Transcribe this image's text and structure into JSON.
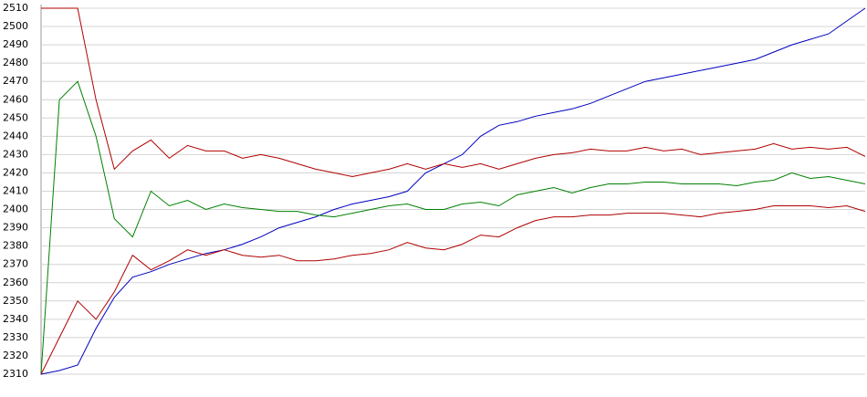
{
  "chart_data": {
    "type": "line",
    "ylim": [
      2310,
      2510
    ],
    "yticks": [
      2310,
      2320,
      2330,
      2340,
      2350,
      2360,
      2370,
      2380,
      2390,
      2400,
      2410,
      2420,
      2430,
      2440,
      2450,
      2460,
      2470,
      2480,
      2490,
      2500,
      2510
    ],
    "grid": true,
    "series": [
      {
        "color": "#0000c0",
        "values": [
          2310,
          2312,
          2315,
          2335,
          2352,
          2363,
          2366,
          2370,
          2373,
          2376,
          2378,
          2381,
          2385,
          2390,
          2393,
          2396,
          2400,
          2403,
          2405,
          2407,
          2410,
          2420,
          2425,
          2430,
          2440,
          2446,
          2448,
          2451,
          2453,
          2455,
          2458,
          2462,
          2466,
          2470,
          2472,
          2474,
          2476,
          2478,
          2480,
          2482,
          2486,
          2490,
          2493,
          2496,
          2503,
          2510
        ]
      },
      {
        "color": "#b00000",
        "values": [
          2510,
          2510,
          2510,
          2460,
          2422,
          2432,
          2438,
          2428,
          2435,
          2432,
          2432,
          2428,
          2430,
          2428,
          2425,
          2422,
          2420,
          2418,
          2420,
          2422,
          2425,
          2422,
          2425,
          2423,
          2425,
          2422,
          2425,
          2428,
          2430,
          2431,
          2433,
          2432,
          2432,
          2434,
          2432,
          2433,
          2430,
          2431,
          2432,
          2433,
          2436,
          2433,
          2434,
          2433,
          2434,
          2429
        ]
      },
      {
        "color": "#008000",
        "values": [
          2310,
          2460,
          2470,
          2440,
          2395,
          2385,
          2410,
          2402,
          2405,
          2400,
          2403,
          2401,
          2400,
          2399,
          2399,
          2397,
          2396,
          2398,
          2400,
          2402,
          2403,
          2400,
          2400,
          2403,
          2404,
          2402,
          2408,
          2410,
          2412,
          2409,
          2412,
          2414,
          2414,
          2415,
          2415,
          2414,
          2414,
          2414,
          2413,
          2415,
          2416,
          2420,
          2417,
          2418,
          2416,
          2414
        ]
      },
      {
        "color": "#b00000",
        "values": [
          2310,
          2330,
          2350,
          2340,
          2355,
          2375,
          2367,
          2372,
          2378,
          2375,
          2378,
          2375,
          2374,
          2375,
          2372,
          2372,
          2373,
          2375,
          2376,
          2378,
          2382,
          2379,
          2378,
          2381,
          2386,
          2385,
          2390,
          2394,
          2396,
          2396,
          2397,
          2397,
          2398,
          2398,
          2398,
          2397,
          2396,
          2398,
          2399,
          2400,
          2402,
          2402,
          2402,
          2401,
          2402,
          2399
        ]
      }
    ]
  }
}
